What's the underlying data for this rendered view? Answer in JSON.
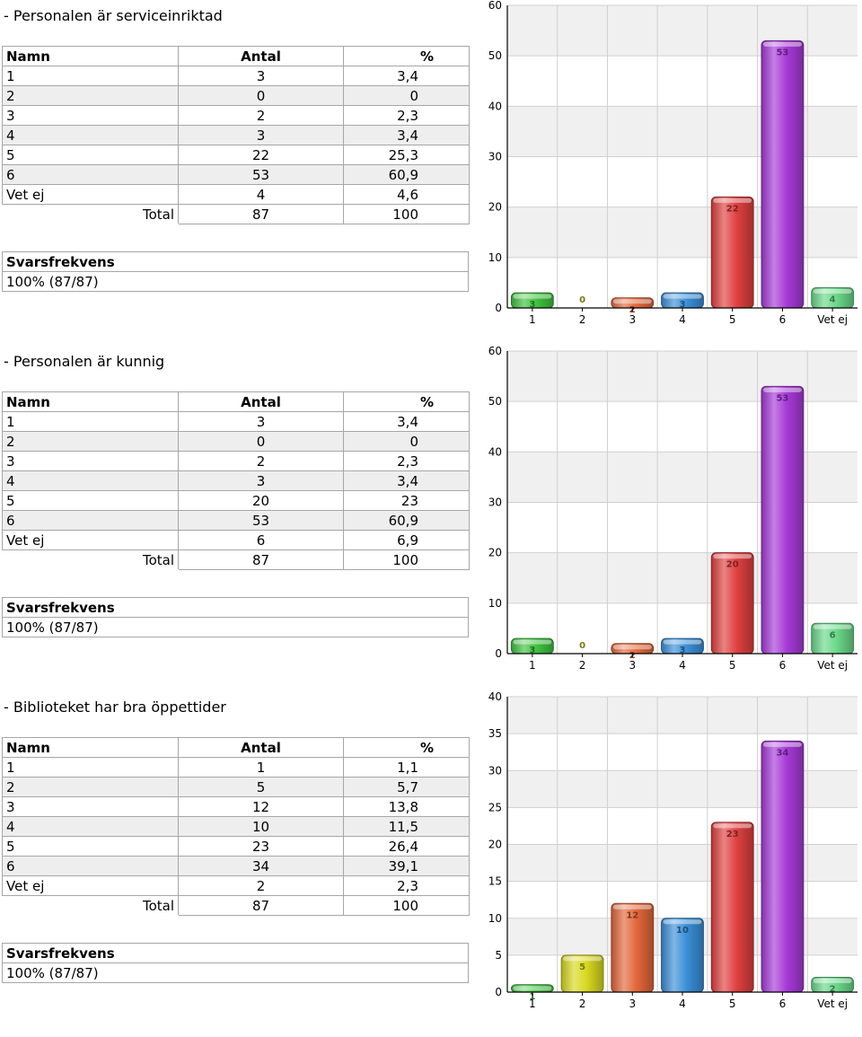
{
  "questions": [
    {
      "title": "- Personalen är serviceinriktad",
      "headers": [
        "Namn",
        "Antal",
        "%"
      ],
      "rows": [
        {
          "name": "1",
          "count": "3",
          "pct": "3,4"
        },
        {
          "name": "2",
          "count": "0",
          "pct": "0"
        },
        {
          "name": "3",
          "count": "2",
          "pct": "2,3"
        },
        {
          "name": "4",
          "count": "3",
          "pct": "3,4"
        },
        {
          "name": "5",
          "count": "22",
          "pct": "25,3"
        },
        {
          "name": "6",
          "count": "53",
          "pct": "60,9"
        },
        {
          "name": "Vet ej",
          "count": "4",
          "pct": "4,6"
        }
      ],
      "total": {
        "label": "Total",
        "count": "87",
        "pct": "100"
      },
      "response_label": "Svarsfrekvens",
      "response_value": "100% (87/87)"
    },
    {
      "title": "- Personalen är kunnig",
      "headers": [
        "Namn",
        "Antal",
        "%"
      ],
      "rows": [
        {
          "name": "1",
          "count": "3",
          "pct": "3,4"
        },
        {
          "name": "2",
          "count": "0",
          "pct": "0"
        },
        {
          "name": "3",
          "count": "2",
          "pct": "2,3"
        },
        {
          "name": "4",
          "count": "3",
          "pct": "3,4"
        },
        {
          "name": "5",
          "count": "20",
          "pct": "23"
        },
        {
          "name": "6",
          "count": "53",
          "pct": "60,9"
        },
        {
          "name": "Vet ej",
          "count": "6",
          "pct": "6,9"
        }
      ],
      "total": {
        "label": "Total",
        "count": "87",
        "pct": "100"
      },
      "response_label": "Svarsfrekvens",
      "response_value": "100% (87/87)"
    },
    {
      "title": "- Biblioteket har bra öppettider",
      "headers": [
        "Namn",
        "Antal",
        "%"
      ],
      "rows": [
        {
          "name": "1",
          "count": "1",
          "pct": "1,1"
        },
        {
          "name": "2",
          "count": "5",
          "pct": "5,7"
        },
        {
          "name": "3",
          "count": "12",
          "pct": "13,8"
        },
        {
          "name": "4",
          "count": "10",
          "pct": "11,5"
        },
        {
          "name": "5",
          "count": "23",
          "pct": "26,4"
        },
        {
          "name": "6",
          "count": "34",
          "pct": "39,1"
        },
        {
          "name": "Vet ej",
          "count": "2",
          "pct": "2,3"
        }
      ],
      "total": {
        "label": "Total",
        "count": "87",
        "pct": "100"
      },
      "response_label": "Svarsfrekvens",
      "response_value": "100% (87/87)"
    }
  ],
  "chart_colors": [
    "#3ec23e",
    "#d8d820",
    "#e2673a",
    "#3a8fd8",
    "#e04040",
    "#a63ad8",
    "#6ad88a"
  ],
  "chart_data": [
    {
      "type": "bar",
      "categories": [
        "1",
        "2",
        "3",
        "4",
        "5",
        "6",
        "Vet ej"
      ],
      "values": [
        3,
        0,
        2,
        3,
        22,
        53,
        4
      ],
      "ylim": [
        0,
        60
      ],
      "yticks": [
        0,
        10,
        20,
        30,
        40,
        50,
        60
      ],
      "grid": true
    },
    {
      "type": "bar",
      "categories": [
        "1",
        "2",
        "3",
        "4",
        "5",
        "6",
        "Vet ej"
      ],
      "values": [
        3,
        0,
        2,
        3,
        20,
        53,
        6
      ],
      "ylim": [
        0,
        60
      ],
      "yticks": [
        0,
        10,
        20,
        30,
        40,
        50,
        60
      ],
      "grid": true
    },
    {
      "type": "bar",
      "categories": [
        "1",
        "2",
        "3",
        "4",
        "5",
        "6",
        "Vet ej"
      ],
      "values": [
        1,
        5,
        12,
        10,
        23,
        34,
        2
      ],
      "ylim": [
        0,
        40
      ],
      "yticks": [
        0,
        5,
        10,
        15,
        20,
        25,
        30,
        35,
        40
      ],
      "grid": true
    }
  ]
}
